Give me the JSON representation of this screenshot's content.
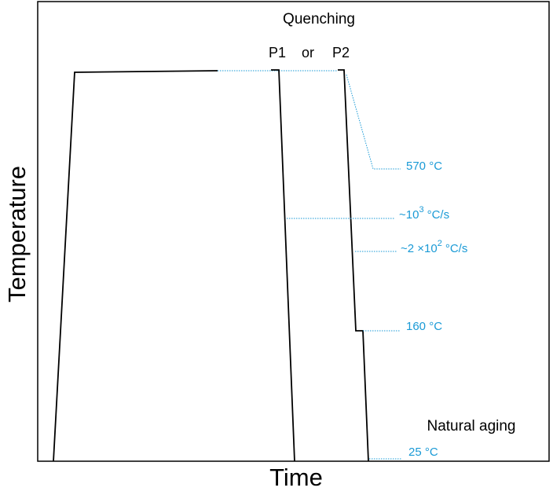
{
  "axes": {
    "y_label": "Temperature",
    "x_label": "Time"
  },
  "header": {
    "title": "Quenching",
    "path1": "P1",
    "or": "or",
    "path2": "P2"
  },
  "annotations": {
    "t_solution": "570 °C",
    "rate_p1": {
      "base": "~10",
      "exp": "3",
      "unit": "°C/s"
    },
    "rate_p2": {
      "base": "~2 ×10",
      "exp": "2",
      "unit": "°C/s"
    },
    "t_step": "160 °C",
    "aging": "Natural aging",
    "t_room": "25 °C"
  }
}
